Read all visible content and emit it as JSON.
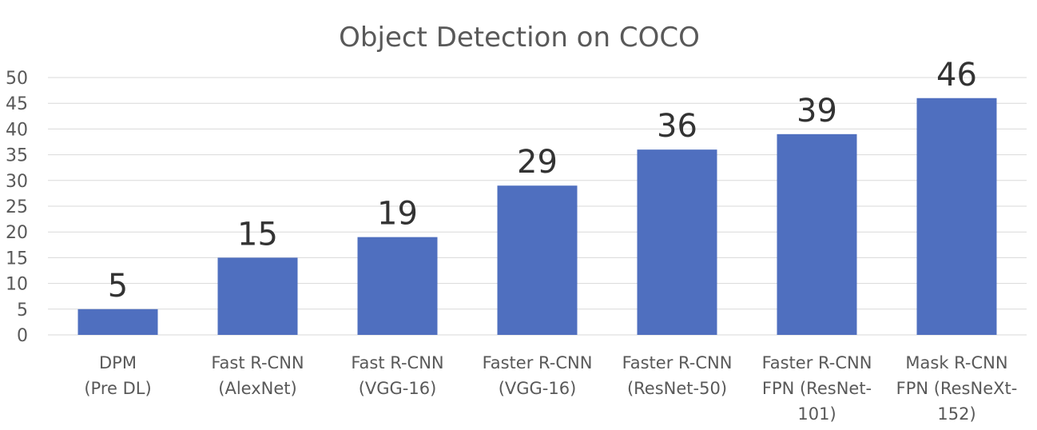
{
  "chart_data": {
    "type": "bar",
    "title": "Object Detection on COCO",
    "xlabel": "",
    "ylabel": "",
    "ylim": [
      0,
      50
    ],
    "yticks": [
      0,
      5,
      10,
      15,
      20,
      25,
      30,
      35,
      40,
      45,
      50
    ],
    "grid": true,
    "categories": [
      [
        "DPM",
        "(Pre DL)"
      ],
      [
        "Fast R-CNN",
        "(AlexNet)"
      ],
      [
        "Fast R-CNN",
        "(VGG-16)"
      ],
      [
        "Faster R-CNN",
        "(VGG-16)"
      ],
      [
        "Faster R-CNN",
        "(ResNet-50)"
      ],
      [
        "Faster R-CNN",
        "FPN (ResNet-",
        "101)"
      ],
      [
        "Mask R-CNN",
        "FPN (ResNeXt-",
        "152)"
      ]
    ],
    "values": [
      5,
      15,
      19,
      29,
      36,
      39,
      46
    ],
    "bar_color": "#4f6fbf"
  }
}
